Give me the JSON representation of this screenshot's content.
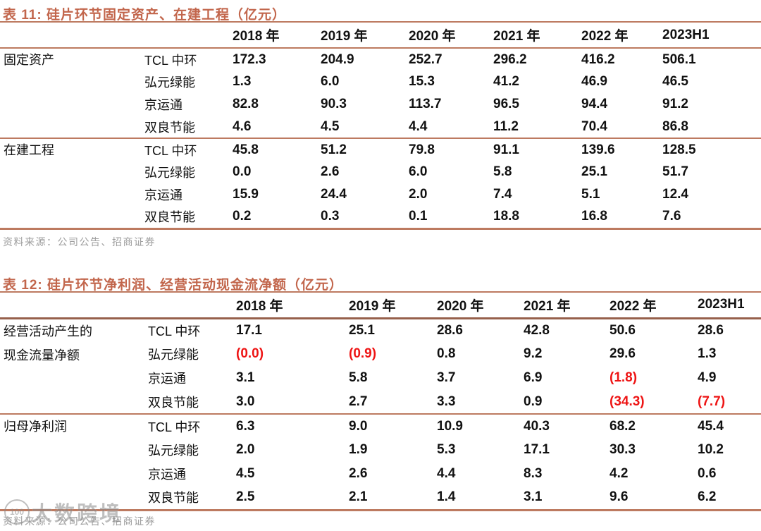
{
  "colors": {
    "accent": "#c2664c",
    "rule": "#bd7a60",
    "rule_dark": "#96604b",
    "negative": "#ee1414",
    "muted": "#9c9c9c",
    "watermark": "#8c8c8c"
  },
  "tables": [
    {
      "title": "表 11: 硅片环节固定资产、在建工程（亿元）",
      "columns": [
        "2018 年",
        "2019 年",
        "2020 年",
        "2021 年",
        "2022 年",
        "2023H1"
      ],
      "sections": [
        {
          "label": "固定资产",
          "rows": [
            {
              "company": "TCL 中环",
              "values": [
                "172.3",
                "204.9",
                "252.7",
                "296.2",
                "416.2",
                "506.1"
              ]
            },
            {
              "company": "弘元绿能",
              "values": [
                "1.3",
                "6.0",
                "15.3",
                "41.2",
                "46.9",
                "46.5"
              ]
            },
            {
              "company": "京运通",
              "values": [
                "82.8",
                "90.3",
                "113.7",
                "96.5",
                "94.4",
                "91.2"
              ]
            },
            {
              "company": "双良节能",
              "values": [
                "4.6",
                "4.5",
                "4.4",
                "11.2",
                "70.4",
                "86.8"
              ]
            }
          ]
        },
        {
          "label": "在建工程",
          "rows": [
            {
              "company": "TCL 中环",
              "values": [
                "45.8",
                "51.2",
                "79.8",
                "91.1",
                "139.6",
                "128.5"
              ]
            },
            {
              "company": "弘元绿能",
              "values": [
                "0.0",
                "2.6",
                "6.0",
                "5.8",
                "25.1",
                "51.7"
              ]
            },
            {
              "company": "京运通",
              "values": [
                "15.9",
                "24.4",
                "2.0",
                "7.4",
                "5.1",
                "12.4"
              ]
            },
            {
              "company": "双良节能",
              "values": [
                "0.2",
                "0.3",
                "0.1",
                "18.8",
                "16.8",
                "7.6"
              ]
            }
          ]
        }
      ],
      "source": "资料来源：公司公告、招商证券"
    },
    {
      "title": "表 12: 硅片环节净利润、经营活动现金流净额（亿元）",
      "columns": [
        "2018 年",
        "2019 年",
        "2020 年",
        "2021 年",
        "2022 年",
        "2023H1"
      ],
      "sections": [
        {
          "label": "经营活动产生的现金流量净额",
          "label_lines": [
            "经营活动产生的",
            "现金流量净额"
          ],
          "rows": [
            {
              "company": "TCL 中环",
              "values": [
                "17.1",
                "25.1",
                "28.6",
                "42.8",
                "50.6",
                "28.6"
              ]
            },
            {
              "company": "弘元绿能",
              "values": [
                "(0.0)",
                "(0.9)",
                "0.8",
                "9.2",
                "29.6",
                "1.3"
              ]
            },
            {
              "company": "京运通",
              "values": [
                "3.1",
                "5.8",
                "3.7",
                "6.9",
                "(1.8)",
                "4.9"
              ]
            },
            {
              "company": "双良节能",
              "values": [
                "3.0",
                "2.7",
                "3.3",
                "0.9",
                "(34.3)",
                "(7.7)"
              ]
            }
          ]
        },
        {
          "label": "归母净利润",
          "rows": [
            {
              "company": "TCL 中环",
              "values": [
                "6.3",
                "9.0",
                "10.9",
                "40.3",
                "68.2",
                "45.4"
              ]
            },
            {
              "company": "弘元绿能",
              "values": [
                "2.0",
                "1.9",
                "5.3",
                "17.1",
                "30.3",
                "10.2"
              ]
            },
            {
              "company": "京运通",
              "values": [
                "4.5",
                "2.6",
                "4.4",
                "8.3",
                "4.2",
                "0.6"
              ]
            },
            {
              "company": "双良节能",
              "values": [
                "2.5",
                "2.1",
                "1.4",
                "3.1",
                "9.6",
                "6.2"
              ]
            }
          ]
        }
      ],
      "source": "资料来源：公司公告、招商证券"
    }
  ],
  "watermark": {
    "badge": "100",
    "text": "大数跨境"
  }
}
